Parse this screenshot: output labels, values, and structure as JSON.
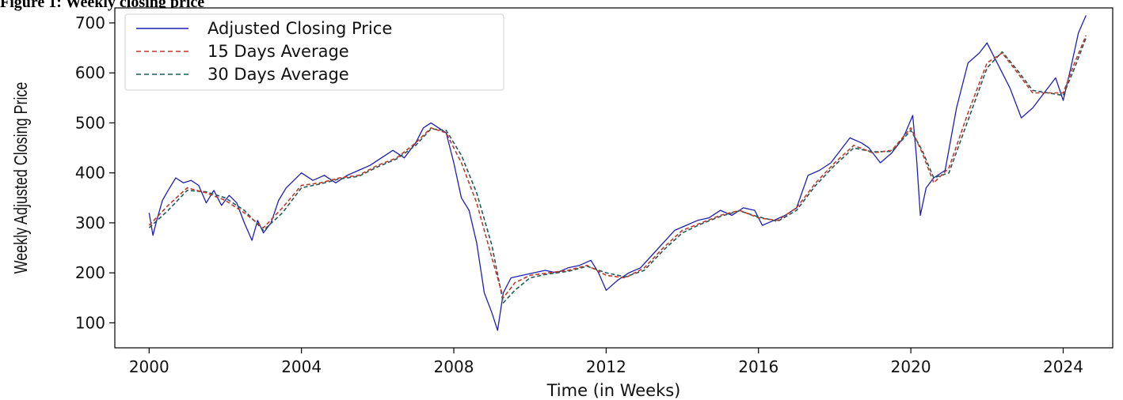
{
  "caption_fragment": "Figure 1: Weekly closing price",
  "chart_data": {
    "type": "line",
    "title": "",
    "xlabel": "Time (in Weeks)",
    "ylabel": "Weekly Adjusted Closing Price",
    "xlim": [
      1999.1,
      2025.3
    ],
    "ylim": [
      50,
      730
    ],
    "x_ticks": [
      2000,
      2004,
      2008,
      2012,
      2016,
      2020,
      2024
    ],
    "x_tick_labels": [
      "2000",
      "2004",
      "2008",
      "2012",
      "2016",
      "2020",
      "2024"
    ],
    "y_ticks": [
      100,
      200,
      300,
      400,
      500,
      600,
      700
    ],
    "y_tick_labels": [
      "100",
      "200",
      "300",
      "400",
      "500",
      "600",
      "700"
    ],
    "grid": false,
    "legend_position": "top-left",
    "series": [
      {
        "name": "Adjusted Closing Price",
        "color": "#1f1fb4",
        "style": "solid",
        "x": [
          2000.0,
          2000.1,
          2000.2,
          2000.35,
          2000.5,
          2000.7,
          2000.9,
          2001.1,
          2001.3,
          2001.5,
          2001.7,
          2001.9,
          2002.1,
          2002.3,
          2002.5,
          2002.7,
          2002.85,
          2003.0,
          2003.2,
          2003.4,
          2003.6,
          2003.8,
          2004.0,
          2004.3,
          2004.6,
          2004.9,
          2005.2,
          2005.5,
          2005.8,
          2006.1,
          2006.4,
          2006.7,
          2007.0,
          2007.2,
          2007.4,
          2007.6,
          2007.8,
          2008.0,
          2008.2,
          2008.4,
          2008.6,
          2008.8,
          2009.0,
          2009.15,
          2009.3,
          2009.5,
          2009.8,
          2010.1,
          2010.4,
          2010.7,
          2011.0,
          2011.3,
          2011.6,
          2011.8,
          2012.0,
          2012.3,
          2012.6,
          2012.9,
          2013.2,
          2013.5,
          2013.8,
          2014.1,
          2014.4,
          2014.7,
          2015.0,
          2015.3,
          2015.6,
          2015.9,
          2016.1,
          2016.4,
          2016.7,
          2017.0,
          2017.3,
          2017.6,
          2017.9,
          2018.1,
          2018.4,
          2018.7,
          2018.9,
          2019.2,
          2019.5,
          2019.8,
          2020.05,
          2020.15,
          2020.25,
          2020.4,
          2020.6,
          2020.9,
          2021.2,
          2021.5,
          2021.8,
          2022.0,
          2022.2,
          2022.4,
          2022.6,
          2022.9,
          2023.2,
          2023.5,
          2023.8,
          2024.0,
          2024.2,
          2024.4,
          2024.6
        ],
        "y": [
          320,
          275,
          305,
          345,
          365,
          390,
          380,
          385,
          375,
          340,
          365,
          335,
          355,
          340,
          300,
          265,
          305,
          280,
          300,
          345,
          370,
          385,
          400,
          385,
          395,
          380,
          395,
          405,
          415,
          430,
          445,
          430,
          460,
          490,
          500,
          490,
          480,
          420,
          350,
          325,
          260,
          160,
          120,
          85,
          160,
          190,
          195,
          200,
          205,
          200,
          210,
          215,
          225,
          200,
          165,
          185,
          200,
          210,
          235,
          260,
          285,
          295,
          305,
          310,
          325,
          315,
          330,
          325,
          295,
          305,
          315,
          330,
          395,
          405,
          420,
          440,
          470,
          460,
          450,
          420,
          440,
          470,
          515,
          430,
          315,
          370,
          390,
          405,
          530,
          620,
          640,
          660,
          630,
          600,
          570,
          510,
          530,
          560,
          590,
          545,
          610,
          680,
          715
        ]
      },
      {
        "name": "15 Days Average",
        "color": "#c0392b",
        "style": "dashed",
        "x": [
          2000.0,
          2000.5,
          2001.0,
          2001.5,
          2002.0,
          2002.5,
          2003.0,
          2003.5,
          2004.0,
          2004.5,
          2005.0,
          2005.5,
          2006.0,
          2006.5,
          2007.0,
          2007.4,
          2007.8,
          2008.2,
          2008.6,
          2009.0,
          2009.3,
          2009.6,
          2010.0,
          2010.5,
          2011.0,
          2011.5,
          2012.0,
          2012.5,
          2013.0,
          2013.5,
          2014.0,
          2014.5,
          2015.0,
          2015.5,
          2016.0,
          2016.5,
          2017.0,
          2017.5,
          2018.0,
          2018.5,
          2019.0,
          2019.5,
          2020.0,
          2020.3,
          2020.6,
          2021.0,
          2021.5,
          2022.0,
          2022.4,
          2022.8,
          2023.2,
          2023.6,
          2024.0,
          2024.3,
          2024.6
        ],
        "y": [
          295,
          335,
          370,
          360,
          345,
          320,
          290,
          330,
          375,
          380,
          390,
          395,
          415,
          430,
          460,
          490,
          480,
          420,
          340,
          230,
          150,
          180,
          195,
          200,
          205,
          215,
          195,
          190,
          210,
          250,
          285,
          300,
          315,
          325,
          310,
          305,
          330,
          380,
          420,
          455,
          440,
          445,
          490,
          440,
          380,
          410,
          520,
          620,
          640,
          600,
          560,
          560,
          560,
          620,
          675
        ]
      },
      {
        "name": "30 Days Average",
        "color": "#1e5c5c",
        "style": "dashed",
        "x": [
          2000.0,
          2000.5,
          2001.0,
          2001.5,
          2002.0,
          2002.5,
          2003.0,
          2003.5,
          2004.0,
          2004.5,
          2005.0,
          2005.5,
          2006.0,
          2006.5,
          2007.0,
          2007.4,
          2007.8,
          2008.2,
          2008.6,
          2009.0,
          2009.3,
          2009.6,
          2010.0,
          2010.5,
          2011.0,
          2011.5,
          2012.0,
          2012.5,
          2013.0,
          2013.5,
          2014.0,
          2014.5,
          2015.0,
          2015.5,
          2016.0,
          2016.5,
          2017.0,
          2017.5,
          2018.0,
          2018.5,
          2019.0,
          2019.5,
          2020.0,
          2020.3,
          2020.6,
          2021.0,
          2021.5,
          2022.0,
          2022.4,
          2022.8,
          2023.2,
          2023.6,
          2024.0,
          2024.3,
          2024.6
        ],
        "y": [
          290,
          325,
          365,
          362,
          350,
          325,
          285,
          320,
          370,
          378,
          388,
          393,
          412,
          428,
          455,
          488,
          485,
          435,
          360,
          255,
          140,
          165,
          190,
          198,
          203,
          213,
          200,
          192,
          205,
          245,
          280,
          298,
          313,
          324,
          312,
          303,
          325,
          375,
          415,
          450,
          442,
          443,
          485,
          445,
          390,
          400,
          505,
          610,
          642,
          605,
          565,
          560,
          555,
          610,
          670
        ]
      }
    ]
  }
}
